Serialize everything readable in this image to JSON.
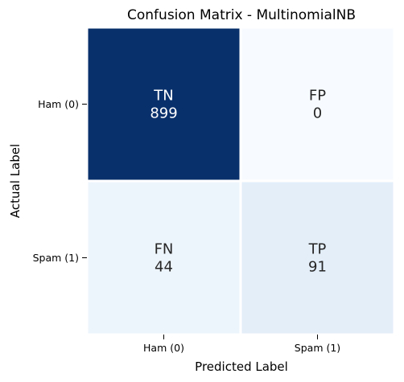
{
  "chart_data": {
    "type": "heatmap",
    "title": "Confusion Matrix - MultinomialNB",
    "xlabel": "Predicted Label",
    "ylabel": "Actual Label",
    "x_tick_labels": [
      "Ham (0)",
      "Spam (1)"
    ],
    "y_tick_labels": [
      "Ham (0)",
      "Spam (1)"
    ],
    "cells": [
      [
        {
          "label": "TN",
          "value": 899
        },
        {
          "label": "FP",
          "value": 0
        }
      ],
      [
        {
          "label": "FN",
          "value": 44
        },
        {
          "label": "TP",
          "value": 91
        }
      ]
    ],
    "colormap": "Blues",
    "colorbar": false,
    "color_low": "#f7fbff",
    "color_high": "#08306b",
    "text_color_dark": "#262626",
    "text_color_light": "#ffffff"
  }
}
